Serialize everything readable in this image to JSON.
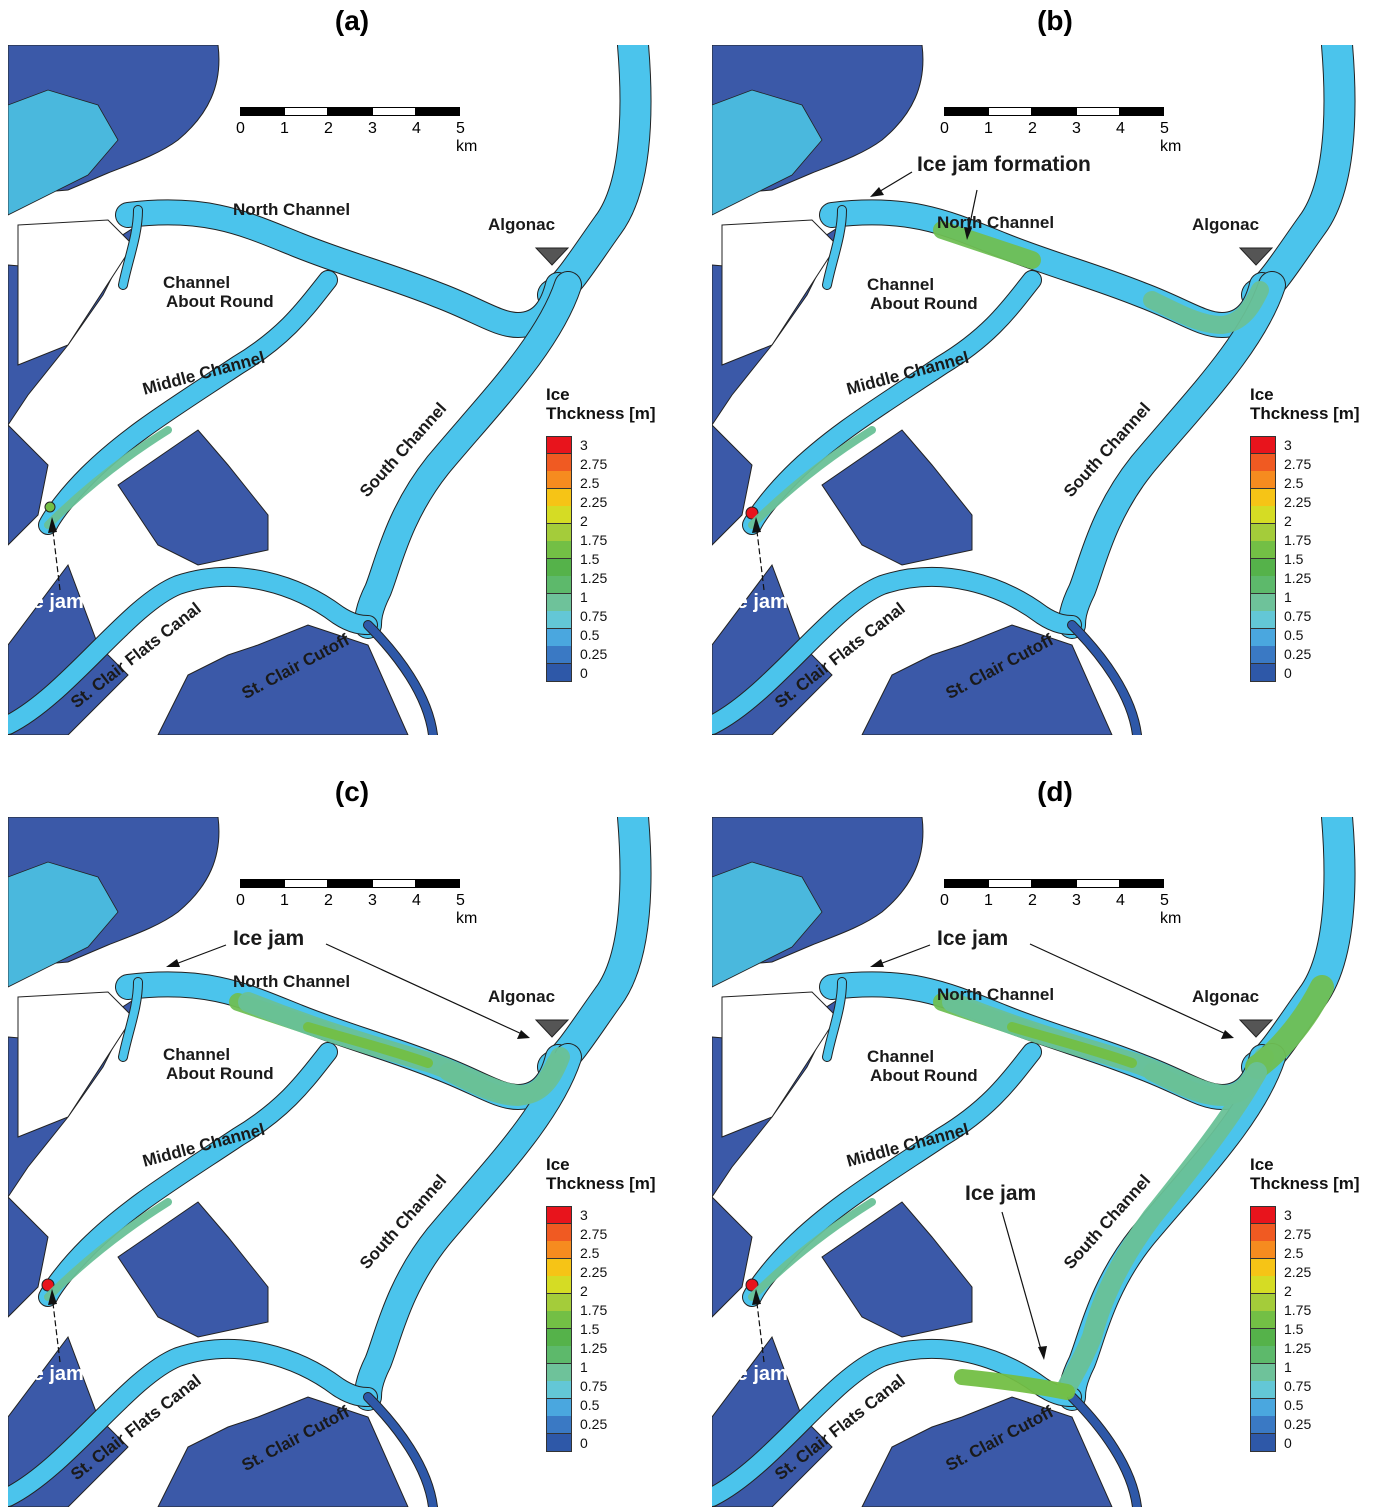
{
  "panels": [
    {
      "id": "a",
      "title": "(a)",
      "labels": {
        "north": "North Channel",
        "car1": "Channel",
        "car2": "About Round",
        "middle": "Middle Channel",
        "south": "South Channel",
        "flats": "St. Clair Flats Canal",
        "cutoff": "St. Clair Cutoff",
        "algonac": "Algonac",
        "jam_sw": "Ice jam"
      }
    },
    {
      "id": "b",
      "title": "(b)",
      "labels": {
        "north": "North Channel",
        "car1": "Channel",
        "car2": "About Round",
        "middle": "Middle Channel",
        "south": "South Channel",
        "flats": "St. Clair Flats Canal",
        "cutoff": "St. Clair Cutoff",
        "algonac": "Algonac",
        "jam_sw": "Ice jam",
        "formation": "Ice jam formation"
      }
    },
    {
      "id": "c",
      "title": "(c)",
      "labels": {
        "north": "North Channel",
        "car1": "Channel",
        "car2": "About Round",
        "middle": "Middle Channel",
        "south": "South Channel",
        "flats": "St. Clair Flats Canal",
        "cutoff": "St. Clair Cutoff",
        "algonac": "Algonac",
        "jam_sw": "Ice jam",
        "jam_north": "Ice jam"
      }
    },
    {
      "id": "d",
      "title": "(d)",
      "labels": {
        "north": "North Channel",
        "car1": "Channel",
        "car2": "About Round",
        "middle": "Middle Channel",
        "south": "South Channel",
        "flats": "St. Clair Flats Canal",
        "cutoff": "St. Clair Cutoff",
        "algonac": "Algonac",
        "jam_sw": "Ice jam",
        "jam_north": "Ice jam",
        "jam_south": "Ice jam"
      }
    }
  ],
  "scale_bar": {
    "ticks": [
      "0",
      "1",
      "2",
      "3",
      "4",
      "5 km"
    ]
  },
  "legend": {
    "title_line1": "Ice",
    "title_line2": "Thckness [m]",
    "values": [
      "3",
      "2.75",
      "2.5",
      "2.25",
      "2",
      "1.75",
      "1.5",
      "1.25",
      "1",
      "0.75",
      "0.5",
      "0.25",
      "0"
    ],
    "colors": [
      "#e8141c",
      "#f05a22",
      "#f68b1f",
      "#f6c416",
      "#d5dc24",
      "#a4cc3a",
      "#73bf45",
      "#55b24a",
      "#5db96b",
      "#6ec29a",
      "#63c7d6",
      "#4aa7df",
      "#3a79c4",
      "#2e58a8"
    ]
  },
  "colors": {
    "land": "#3b59a8",
    "water": "#4bc4ec",
    "ice_mid": "#69c197",
    "ice_green": "#6fbf54",
    "jam_red": "#e8141c"
  }
}
